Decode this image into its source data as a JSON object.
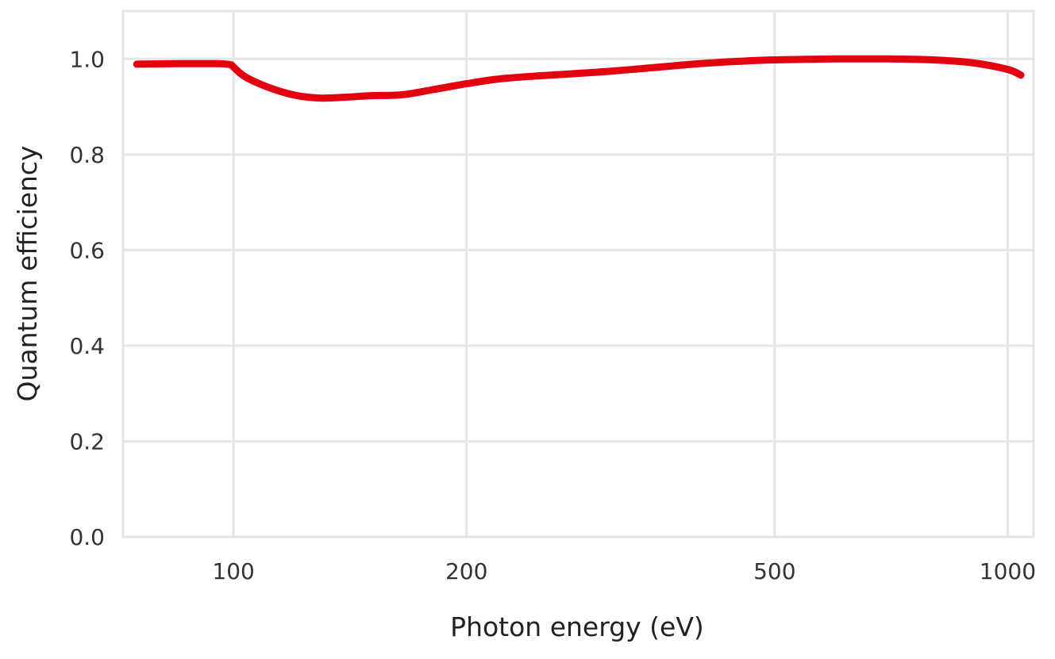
{
  "chart_data": {
    "type": "line",
    "title": "",
    "xlabel": "Photon energy (eV)",
    "ylabel": "Quantum efficiency",
    "x_scale": "log",
    "xlim": [
      72,
      1080
    ],
    "ylim": [
      0,
      1.1
    ],
    "x_ticks": [
      100,
      200,
      500,
      1000
    ],
    "x_tick_labels": [
      "100",
      "200",
      "500",
      "1000"
    ],
    "y_ticks": [
      0.0,
      0.2,
      0.4,
      0.6,
      0.8,
      1.0
    ],
    "y_tick_labels": [
      "0.0",
      "0.2",
      "0.4",
      "0.6",
      "0.8",
      "1.0"
    ],
    "grid": true,
    "legend": "none",
    "series": [
      {
        "color": "#e3000f",
        "x": [
          75,
          85,
          95,
          99,
          100,
          103,
          108,
          115,
          122,
          130,
          140,
          150,
          165,
          180,
          200,
          220,
          250,
          300,
          350,
          400,
          450,
          500,
          600,
          700,
          800,
          900,
          1000,
          1040
        ],
        "y": [
          0.989,
          0.99,
          0.99,
          0.988,
          0.983,
          0.965,
          0.948,
          0.932,
          0.922,
          0.918,
          0.92,
          0.923,
          0.925,
          0.935,
          0.948,
          0.958,
          0.965,
          0.973,
          0.982,
          0.99,
          0.995,
          0.998,
          1.0,
          1.0,
          0.998,
          0.992,
          0.978,
          0.966
        ]
      }
    ]
  }
}
